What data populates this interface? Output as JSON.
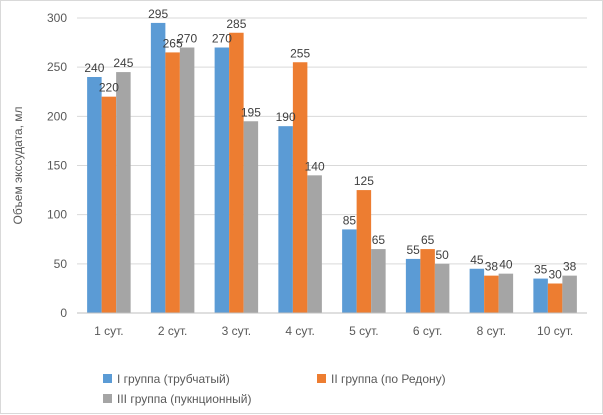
{
  "chart_data": {
    "type": "bar",
    "title": "",
    "xlabel": "",
    "ylabel": "Объем экссудата, мл",
    "ylim": [
      0,
      300
    ],
    "yticks": [
      0,
      50,
      100,
      150,
      200,
      250,
      300
    ],
    "grid": true,
    "legend_position": "bottom",
    "categories": [
      "1 сут.",
      "2 сут.",
      "3 сут.",
      "4 сут.",
      "5 сут.",
      "6 сут.",
      "8 сут.",
      "10 сут."
    ],
    "series": [
      {
        "name": "I группа (трубчатый)",
        "color": "#5b9bd5",
        "values": [
          240,
          295,
          270,
          190,
          85,
          55,
          45,
          35
        ]
      },
      {
        "name": "II группа (по Редону)",
        "color": "#ed7d31",
        "values": [
          220,
          265,
          285,
          255,
          125,
          65,
          38,
          30
        ]
      },
      {
        "name": "III группа (пукнционный)",
        "color": "#a5a5a5",
        "values": [
          245,
          270,
          195,
          140,
          65,
          50,
          40,
          38
        ]
      }
    ]
  }
}
